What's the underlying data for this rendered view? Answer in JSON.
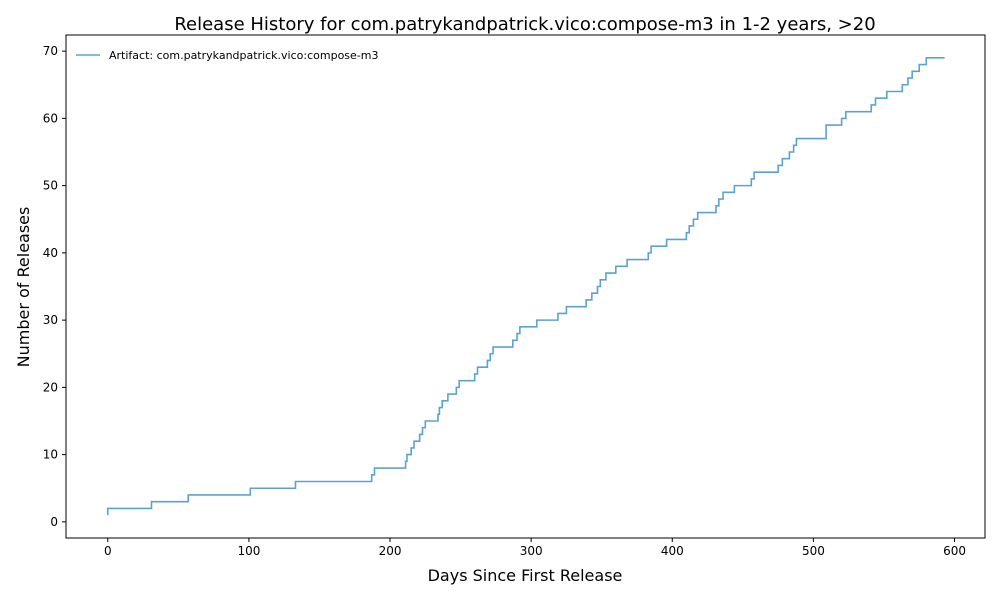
{
  "chart_data": {
    "type": "line",
    "step": "post",
    "title": "Release History for com.patrykandpatrick.vico:compose-m3 in 1-2 years, >20",
    "xlabel": "Days Since First Release",
    "ylabel": "Number of Releases",
    "xlim": [
      -29.6,
      621.6
    ],
    "ylim": [
      -2.4,
      72.4
    ],
    "xticks": [
      0,
      100,
      200,
      300,
      400,
      500,
      600
    ],
    "yticks": [
      0,
      10,
      20,
      30,
      40,
      50,
      60,
      70
    ],
    "grid": false,
    "legend_position": "top-left",
    "series": [
      {
        "name": "Artifact: com.patrykandpatrick.vico:compose-m3",
        "color": "#5ba3cf",
        "x": [
          0,
          0,
          31,
          57,
          101,
          133,
          187,
          189,
          211,
          212,
          215,
          217,
          221,
          223,
          225,
          234,
          235,
          237,
          241,
          247,
          249,
          260,
          262,
          269,
          271,
          273,
          277,
          287,
          290,
          292,
          304,
          319,
          325,
          339,
          343,
          347,
          349,
          353,
          360,
          368,
          383,
          385,
          396,
          410,
          412,
          415,
          418,
          431,
          433,
          436,
          444,
          456,
          458,
          475,
          478,
          483,
          486,
          488,
          490,
          509,
          520,
          523,
          525,
          541,
          544,
          552,
          563,
          567,
          570,
          575,
          580,
          584,
          593
        ],
        "y": [
          1,
          2,
          3,
          4,
          5,
          6,
          7,
          8,
          9,
          10,
          11,
          12,
          13,
          14,
          15,
          16,
          17,
          18,
          19,
          20,
          21,
          22,
          23,
          24,
          25,
          26,
          26,
          27,
          28,
          29,
          30,
          31,
          32,
          33,
          34,
          35,
          36,
          37,
          38,
          39,
          40,
          41,
          42,
          43,
          44,
          45,
          46,
          47,
          48,
          49,
          50,
          51,
          52,
          53,
          54,
          55,
          56,
          57,
          57,
          59,
          60,
          61,
          61,
          62,
          63,
          64,
          65,
          66,
          67,
          68,
          69,
          69,
          69
        ]
      }
    ]
  }
}
